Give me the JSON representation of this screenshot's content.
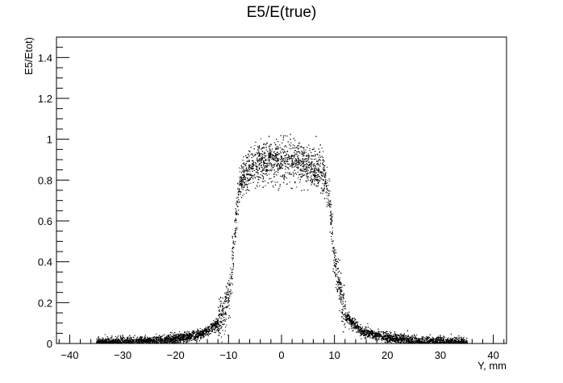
{
  "chart_data": {
    "type": "scatter",
    "title": "E5/E(true)",
    "xlabel": "Y, mm",
    "ylabel": "E5/Etot)",
    "xlim": [
      -42.5,
      42.5
    ],
    "ylim": [
      0,
      1.5
    ],
    "x_ticks": [
      -40,
      -30,
      -20,
      -10,
      0,
      10,
      20,
      30,
      40
    ],
    "x_tick_labels": [
      "−40",
      "−30",
      "−20",
      "−10",
      "0",
      "10",
      "20",
      "30",
      "40"
    ],
    "y_ticks": [
      0,
      0.2,
      0.4,
      0.6,
      0.8,
      1,
      1.2,
      1.4
    ],
    "y_tick_labels": [
      "0",
      "0.2",
      "0.4",
      "0.6",
      "0.8",
      "1",
      "1.2",
      "1.4"
    ],
    "grid": false,
    "legend": "none",
    "marker_color": "#000000",
    "series": [
      {
        "x_range": [
          -35,
          35
        ],
        "profile": {
          "x": [
            -35,
            -30,
            -25,
            -20,
            -15,
            -12,
            -10,
            -9,
            -8,
            -6,
            -4,
            -2,
            0,
            2,
            4,
            6,
            8,
            9,
            10,
            12,
            15,
            20,
            25,
            30,
            35
          ],
          "y": [
            0.005,
            0.01,
            0.015,
            0.025,
            0.05,
            0.1,
            0.22,
            0.5,
            0.78,
            0.86,
            0.89,
            0.9,
            0.91,
            0.9,
            0.89,
            0.86,
            0.84,
            0.7,
            0.4,
            0.14,
            0.06,
            0.03,
            0.015,
            0.01,
            0.005
          ]
        },
        "y_spread": {
          "plateau": [
            0.75,
            1.05
          ],
          "tails": "narrow band around profile"
        },
        "approx_point_count": 9000
      }
    ]
  }
}
